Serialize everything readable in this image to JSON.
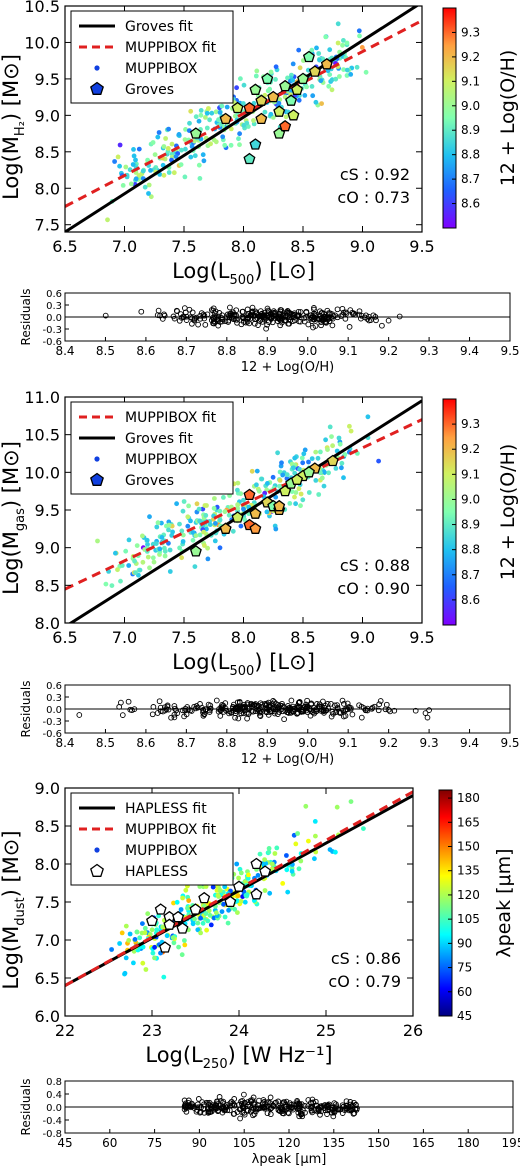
{
  "chart_data": [
    {
      "type": "scatter",
      "xlabel": "Log(L₅₀₀)   [L⊙]",
      "ylabel": "Log(Mₕ₂)   [M⊙]",
      "xlim": [
        6.5,
        9.5
      ],
      "ylim": [
        7.4,
        10.5
      ],
      "xticks": [
        "6.5",
        "7.0",
        "7.5",
        "8.0",
        "8.5",
        "9.0",
        "9.5"
      ],
      "yticks": [
        "7.5",
        "8.0",
        "8.5",
        "9.0",
        "9.5",
        "10.0",
        "10.5"
      ],
      "legend": [
        "Groves fit",
        "MUPPIBOX fit",
        "MUPPIBOX",
        "Groves"
      ],
      "legend_position": "top-left",
      "annotation": [
        "cS : 0.92",
        "cO : 0.73"
      ],
      "colorbar": {
        "label": "12 + Log(O/H)",
        "ticks": [
          "8.6",
          "8.7",
          "8.8",
          "8.9",
          "9.0",
          "9.1",
          "9.2",
          "9.3"
        ],
        "range": [
          8.5,
          9.4
        ],
        "palette": "rainbow"
      },
      "fits": [
        {
          "name": "Groves fit",
          "x": [
            6.5,
            9.5
          ],
          "y": [
            7.4,
            10.55
          ],
          "color": "#000000",
          "dash": "solid"
        },
        {
          "name": "MUPPIBOX fit",
          "x": [
            6.5,
            9.5
          ],
          "y": [
            7.75,
            10.3
          ],
          "color": "#e02020",
          "dash": "dashed"
        }
      ],
      "groves_points": {
        "x": [
          7.6,
          7.85,
          7.95,
          8.05,
          8.1,
          8.15,
          8.2,
          8.25,
          8.3,
          8.35,
          8.4,
          8.45,
          8.5,
          8.55,
          8.6,
          8.7,
          8.05,
          8.1,
          8.3,
          8.42,
          8.15,
          8.35
        ],
        "y": [
          8.75,
          8.95,
          9.1,
          9.1,
          9.35,
          9.2,
          9.5,
          9.25,
          9.05,
          9.4,
          9.2,
          9.35,
          9.5,
          9.8,
          9.6,
          9.7,
          8.4,
          8.6,
          8.75,
          9.0,
          8.95,
          8.85
        ],
        "c": [
          9.0,
          9.2,
          9.1,
          9.3,
          9.0,
          9.15,
          8.95,
          9.2,
          9.1,
          9.0,
          8.95,
          9.1,
          9.0,
          8.95,
          9.15,
          9.2,
          8.9,
          8.85,
          9.0,
          9.1,
          9.2,
          9.3
        ]
      },
      "residuals": {
        "xlabel": "12 + Log(O/H)",
        "ylabel": "Residuals",
        "xlim": [
          8.4,
          9.5
        ],
        "ylim": [
          -0.6,
          0.6
        ],
        "xticks": [
          "8.4",
          "8.5",
          "8.6",
          "8.7",
          "8.8",
          "8.9",
          "9.0",
          "9.1",
          "9.2",
          "9.3",
          "9.4",
          "9.5"
        ],
        "yticks": [
          "0.6",
          "0.3",
          "0.0",
          "-0.3",
          "-0.6"
        ]
      }
    },
    {
      "type": "scatter",
      "xlabel": "Log(L₅₀₀)   [L⊙]",
      "ylabel": "Log(M₉ₐₛ)   [M⊙]",
      "xlim": [
        6.5,
        9.5
      ],
      "ylim": [
        8.0,
        11.0
      ],
      "xticks": [
        "6.5",
        "7.0",
        "7.5",
        "8.0",
        "8.5",
        "9.0",
        "9.5"
      ],
      "yticks": [
        "8.0",
        "8.5",
        "9.0",
        "9.5",
        "10.0",
        "10.5",
        "11.0"
      ],
      "legend": [
        "MUPPIBOX fit",
        "Groves fit",
        "MUPPIBOX",
        "Groves"
      ],
      "legend_position": "top-left",
      "annotation": [
        "cS : 0.88",
        "cO : 0.90"
      ],
      "colorbar": {
        "label": "12 + Log(O/H)",
        "ticks": [
          "8.6",
          "8.7",
          "8.8",
          "8.9",
          "9.0",
          "9.1",
          "9.2",
          "9.3"
        ],
        "range": [
          8.5,
          9.4
        ],
        "palette": "rainbow"
      },
      "fits": [
        {
          "name": "MUPPIBOX fit",
          "x": [
            6.5,
            9.5
          ],
          "y": [
            8.45,
            10.7
          ],
          "color": "#e02020",
          "dash": "dashed"
        },
        {
          "name": "Groves fit",
          "x": [
            6.5,
            9.5
          ],
          "y": [
            7.95,
            10.95
          ],
          "color": "#000000",
          "dash": "solid"
        }
      ],
      "groves_points": {
        "x": [
          7.6,
          7.85,
          7.95,
          8.05,
          8.1,
          8.2,
          8.25,
          8.3,
          8.35,
          8.4,
          8.5,
          8.6,
          8.75,
          8.05,
          8.3,
          8.1,
          8.45,
          8.55
        ],
        "y": [
          8.95,
          9.25,
          9.4,
          9.7,
          9.45,
          9.6,
          9.55,
          9.5,
          9.75,
          9.85,
          9.95,
          10.05,
          10.15,
          9.3,
          9.55,
          9.25,
          9.9,
          10.0
        ],
        "c": [
          9.0,
          9.2,
          9.1,
          9.3,
          9.2,
          9.15,
          8.95,
          9.2,
          9.1,
          9.0,
          9.1,
          9.2,
          9.15,
          9.3,
          9.2,
          9.25,
          9.1,
          9.0
        ]
      },
      "residuals": {
        "xlabel": "12 + Log(O/H)",
        "ylabel": "Residuals",
        "xlim": [
          8.4,
          9.5
        ],
        "ylim": [
          -0.6,
          0.6
        ],
        "xticks": [
          "8.4",
          "8.5",
          "8.6",
          "8.7",
          "8.8",
          "8.9",
          "9.0",
          "9.1",
          "9.2",
          "9.3",
          "9.4",
          "9.5"
        ],
        "yticks": [
          "0.6",
          "0.3",
          "0.0",
          "-0.3",
          "-0.6"
        ]
      }
    },
    {
      "type": "scatter",
      "xlabel": "Log(L₂₅₀)   [W Hz⁻¹]",
      "ylabel": "Log(Mᵈᵘˢᵗ)   [M⊙]",
      "xlim": [
        22,
        26
      ],
      "ylim": [
        6.0,
        9.0
      ],
      "xticks": [
        "22",
        "23",
        "24",
        "25",
        "26"
      ],
      "yticks": [
        "6.0",
        "6.5",
        "7.0",
        "7.5",
        "8.0",
        "8.5",
        "9.0"
      ],
      "legend": [
        "HAPLESS fit",
        "MUPPIBOX fit",
        "MUPPIBOX",
        "HAPLESS"
      ],
      "legend_position": "top-left",
      "annotation": [
        "cS : 0.86",
        "cO : 0.79"
      ],
      "colorbar": {
        "label": "λpeak  [μm]",
        "ticks": [
          "45",
          "60",
          "75",
          "90",
          "105",
          "120",
          "135",
          "150",
          "165",
          "180"
        ],
        "range": [
          45,
          185
        ],
        "palette": "jet"
      },
      "fits": [
        {
          "name": "HAPLESS fit",
          "x": [
            22,
            26
          ],
          "y": [
            6.4,
            8.9
          ],
          "color": "#000000",
          "dash": "solid"
        },
        {
          "name": "MUPPIBOX fit",
          "x": [
            22,
            26
          ],
          "y": [
            6.4,
            8.95
          ],
          "color": "#e02020",
          "dash": "dashed"
        }
      ],
      "groves_points": {
        "x": [
          23.1,
          23.2,
          23.2,
          23.3,
          23.5,
          23.6,
          23.9,
          24.0,
          24.2,
          24.2,
          23.0,
          23.15,
          23.35,
          24.3
        ],
        "y": [
          7.4,
          7.3,
          7.2,
          7.3,
          7.4,
          7.55,
          7.5,
          7.7,
          7.6,
          8.0,
          7.25,
          6.9,
          7.15,
          7.9
        ],
        "c": null
      },
      "residuals": {
        "xlabel": "λpeak   [μm]",
        "ylabel": "Residuals",
        "xlim": [
          45,
          195
        ],
        "ylim": [
          -0.8,
          0.8
        ],
        "xticks": [
          "45",
          "60",
          "75",
          "90",
          "105",
          "120",
          "135",
          "150",
          "165",
          "180",
          "195"
        ],
        "yticks": [
          "0.8",
          "0.4",
          "0.0",
          "-0.4",
          "-0.8"
        ]
      }
    }
  ]
}
